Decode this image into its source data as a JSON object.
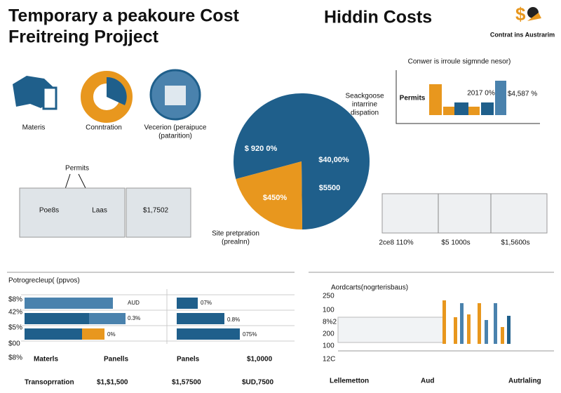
{
  "header": {
    "title_line1": "Temporary a peakoure Cost",
    "title_line2": "Freitreing Projject",
    "hidden": "Hiddin Costs",
    "logo_text": "Contrat ins Austrarim"
  },
  "icons": [
    {
      "label": "Materis"
    },
    {
      "label": "Conntration"
    },
    {
      "label": "Vecerion (peraipuce",
      "label2": "(patarition)"
    }
  ],
  "fence_left": {
    "callout": "Permits",
    "labels": [
      "Poe8s",
      "Laas",
      "$1,7502"
    ]
  },
  "pie": {
    "slices": [
      {
        "value": 79,
        "color": "#1f5f8b"
      },
      {
        "value": 21,
        "color": "#e8971e"
      }
    ],
    "labels": [
      "$ 920 0%",
      "$40,00%",
      "$5500",
      "$450%"
    ],
    "callout_top": [
      "Seackgoose",
      "intarrine",
      "dispation"
    ],
    "callout_bottom": [
      "Site pretpration",
      "(prealnn)"
    ]
  },
  "top_right": {
    "title": "Conwer is irroule sigmnde nesor)",
    "labels": [
      "Permits",
      "2017 0%",
      "$4,587 %"
    ]
  },
  "fence_right": {
    "labels": [
      "2ce8 110%",
      "$5 1000s",
      "$1,5600s"
    ]
  },
  "bottom_left": {
    "title": "Potrogrecleup( (ppvos)",
    "row_labels": [
      "$8%",
      "42%",
      "$5%",
      "$00",
      "$8%"
    ],
    "bar_texts": [
      "AUD",
      "0.3%",
      "0%",
      "07%",
      "0.8%",
      "075%"
    ],
    "row1": [
      "Materls",
      "Panells",
      "Panels",
      "$1,0000"
    ],
    "row2": [
      "Transoprration",
      "$1,$1,500",
      "$1,57500",
      "$UD,7500"
    ]
  },
  "bottom_right": {
    "title": "Aordcarts(nogrterisbaus)",
    "ticks": [
      "250",
      "100",
      "8%2",
      "200",
      "100",
      "12C"
    ],
    "footer": [
      "Lellemetton",
      "Aud",
      "Autrlaling"
    ]
  }
}
